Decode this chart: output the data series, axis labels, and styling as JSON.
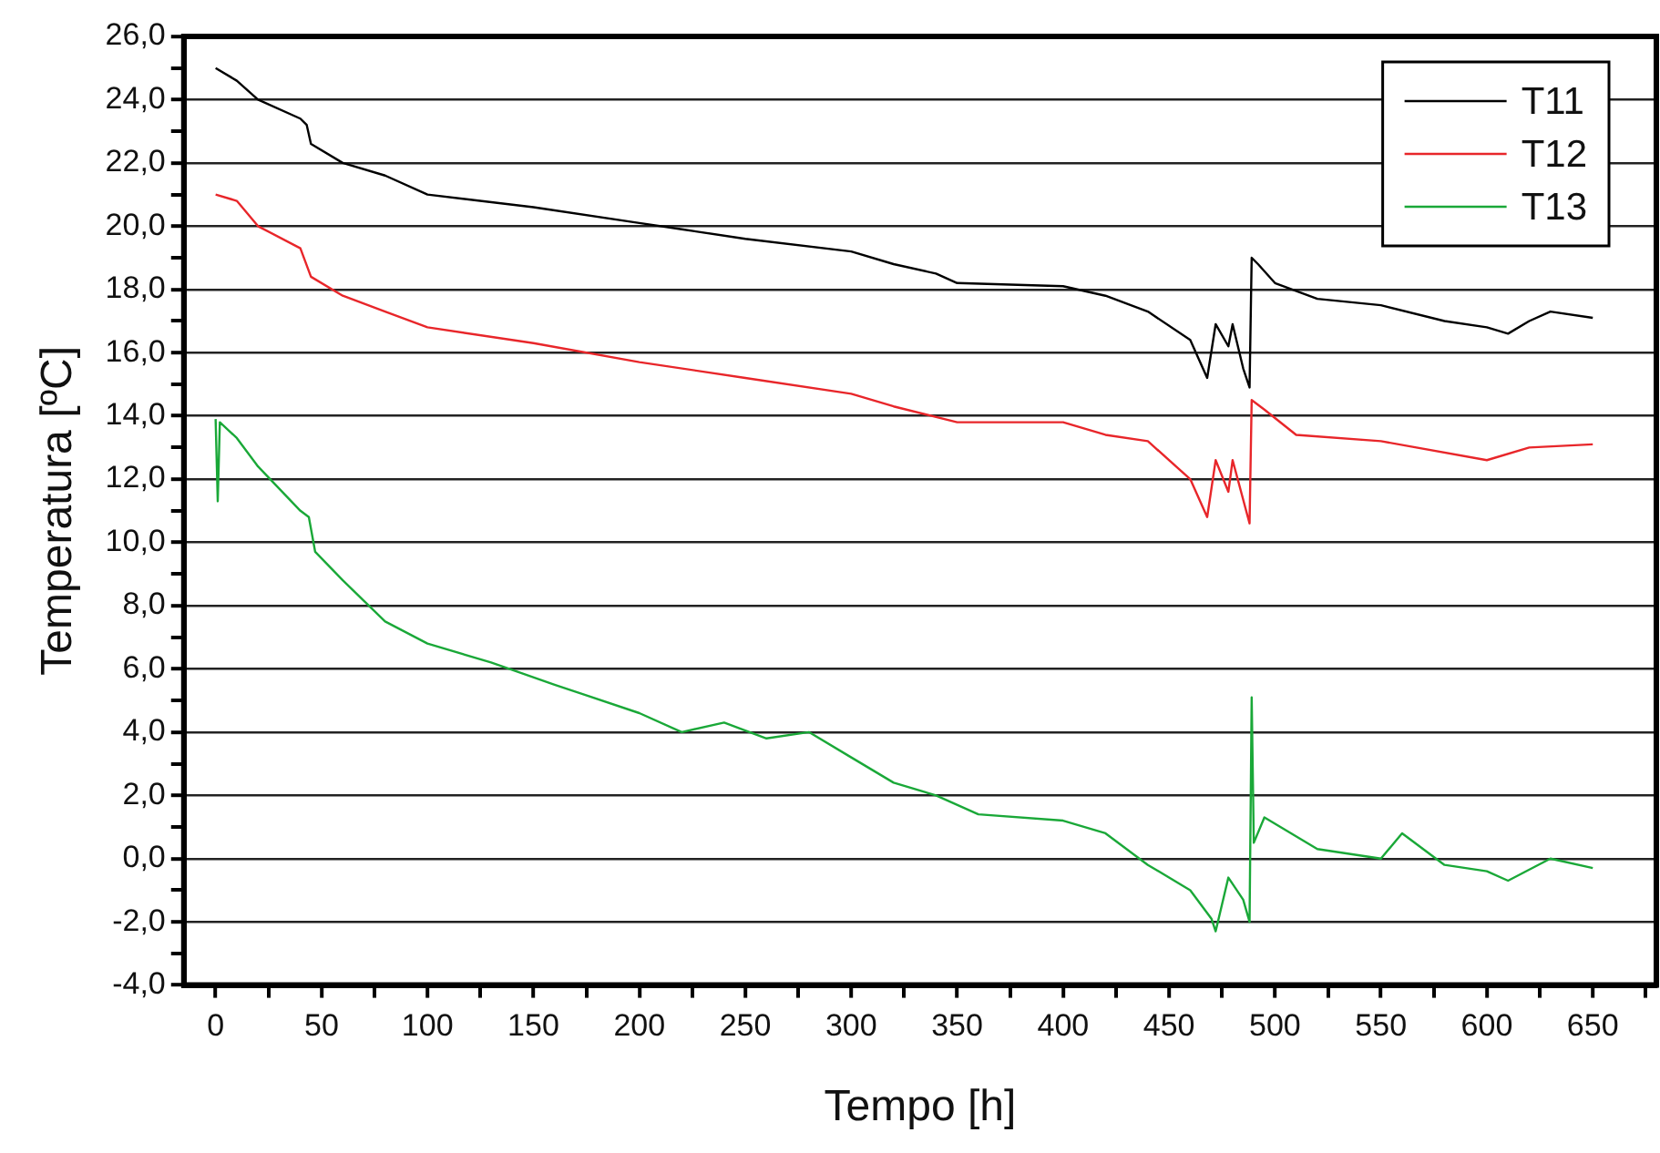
{
  "chart_data": {
    "type": "line",
    "xlabel": "Tempo [h]",
    "ylabel": "Temperatura [ºC]",
    "xlim": [
      -15,
      680
    ],
    "ylim": [
      -4,
      26
    ],
    "xticks": [
      0,
      {
        "value": 25,
        "label": null
      },
      50,
      {
        "value": 75,
        "label": null
      },
      100,
      {
        "value": 125,
        "label": null
      },
      150,
      {
        "value": 175,
        "label": null
      },
      200,
      {
        "value": 225,
        "label": null
      },
      250,
      {
        "value": 275,
        "label": null
      },
      300,
      {
        "value": 325,
        "label": null
      },
      350,
      {
        "value": 375,
        "label": null
      },
      400,
      {
        "value": 425,
        "label": null
      },
      450,
      {
        "value": 475,
        "label": null
      },
      500,
      {
        "value": 525,
        "label": null
      },
      550,
      {
        "value": 575,
        "label": null
      },
      600,
      {
        "value": 625,
        "label": null
      },
      650,
      {
        "value": 675,
        "label": null
      }
    ],
    "yticks": [
      {
        "value": -4,
        "label": "-4,0"
      },
      {
        "value": -3,
        "label": null
      },
      {
        "value": -2,
        "label": "-2,0"
      },
      {
        "value": -1,
        "label": null
      },
      {
        "value": 0,
        "label": "0,0"
      },
      {
        "value": 1,
        "label": null
      },
      {
        "value": 2,
        "label": "2,0"
      },
      {
        "value": 3,
        "label": null
      },
      {
        "value": 4,
        "label": "4,0"
      },
      {
        "value": 5,
        "label": null
      },
      {
        "value": 6,
        "label": "6,0"
      },
      {
        "value": 7,
        "label": null
      },
      {
        "value": 8,
        "label": "8,0"
      },
      {
        "value": 9,
        "label": null
      },
      {
        "value": 10,
        "label": "10,0"
      },
      {
        "value": 11,
        "label": null
      },
      {
        "value": 12,
        "label": "12,0"
      },
      {
        "value": 13,
        "label": null
      },
      {
        "value": 14,
        "label": "14,0"
      },
      {
        "value": 15,
        "label": null
      },
      {
        "value": 16,
        "label": "16,0"
      },
      {
        "value": 17,
        "label": null
      },
      {
        "value": 18,
        "label": "18,0"
      },
      {
        "value": 19,
        "label": null
      },
      {
        "value": 20,
        "label": "20,0"
      },
      {
        "value": 21,
        "label": null
      },
      {
        "value": 22,
        "label": "22,0"
      },
      {
        "value": 23,
        "label": null
      },
      {
        "value": 24,
        "label": "24,0"
      },
      {
        "value": 25,
        "label": null
      },
      {
        "value": 26,
        "label": "26,0"
      }
    ],
    "grid": "y",
    "legend": "top right",
    "marker": "none",
    "line_style": "solid",
    "series": [
      {
        "name": "T11",
        "color": "#000000",
        "x": [
          0,
          10,
          20,
          40,
          43,
          45,
          60,
          80,
          100,
          150,
          200,
          220,
          250,
          300,
          320,
          340,
          350,
          400,
          420,
          440,
          460,
          468,
          472,
          478,
          480,
          485,
          488,
          489,
          492,
          500,
          520,
          550,
          580,
          600,
          610,
          620,
          630,
          650
        ],
        "values": [
          25.0,
          24.6,
          24.0,
          23.4,
          23.2,
          22.6,
          22.0,
          21.6,
          21.0,
          20.6,
          20.1,
          19.9,
          19.6,
          19.2,
          18.8,
          18.5,
          18.2,
          18.1,
          17.8,
          17.3,
          16.4,
          15.2,
          16.9,
          16.2,
          16.9,
          15.5,
          14.9,
          19.0,
          18.8,
          18.2,
          17.7,
          17.5,
          17.0,
          16.8,
          16.6,
          17.0,
          17.3,
          17.1
        ]
      },
      {
        "name": "T12",
        "color": "#e8262a",
        "x": [
          0,
          10,
          20,
          40,
          45,
          60,
          80,
          100,
          150,
          200,
          250,
          300,
          320,
          350,
          400,
          420,
          440,
          460,
          468,
          472,
          478,
          480,
          488,
          489,
          495,
          510,
          550,
          600,
          620,
          650
        ],
        "values": [
          21.0,
          20.8,
          20.0,
          19.3,
          18.4,
          17.8,
          17.3,
          16.8,
          16.3,
          15.7,
          15.2,
          14.7,
          14.3,
          13.8,
          13.8,
          13.4,
          13.2,
          12.0,
          10.8,
          12.6,
          11.6,
          12.6,
          10.6,
          14.5,
          14.2,
          13.4,
          13.2,
          12.6,
          13.0,
          13.1
        ]
      },
      {
        "name": "T13",
        "color": "#1aa838",
        "x": [
          0,
          1,
          2,
          10,
          20,
          40,
          44,
          47,
          60,
          80,
          100,
          130,
          160,
          200,
          220,
          240,
          260,
          280,
          300,
          320,
          340,
          360,
          400,
          420,
          440,
          460,
          470,
          472,
          478,
          485,
          488,
          489,
          490,
          495,
          520,
          550,
          560,
          580,
          600,
          610,
          630,
          650
        ],
        "values": [
          13.9,
          11.3,
          13.8,
          13.3,
          12.4,
          11.0,
          10.8,
          9.7,
          8.8,
          7.5,
          6.8,
          6.2,
          5.5,
          4.6,
          4.0,
          4.3,
          3.8,
          4.0,
          3.2,
          2.4,
          2.0,
          1.4,
          1.2,
          0.8,
          -0.2,
          -1.0,
          -1.9,
          -2.3,
          -0.6,
          -1.3,
          -2.0,
          5.1,
          0.5,
          1.3,
          0.3,
          0.0,
          0.8,
          -0.2,
          -0.4,
          -0.7,
          0.0,
          -0.3
        ]
      }
    ]
  }
}
